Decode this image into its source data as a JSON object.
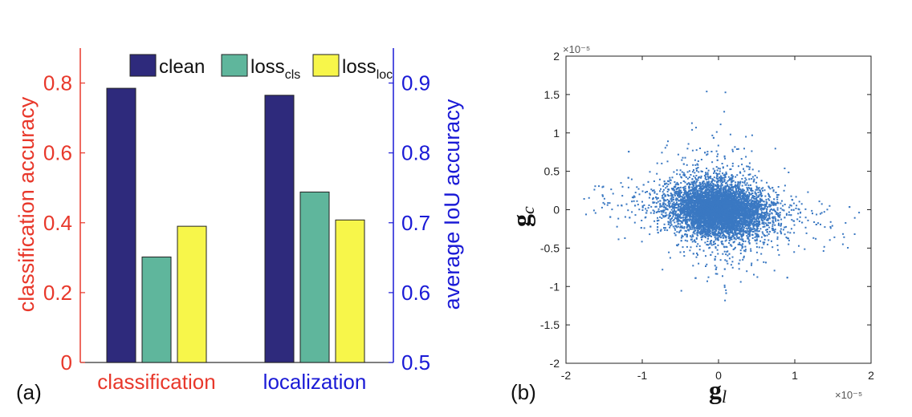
{
  "panel_labels": {
    "a": "(a)",
    "b": "(b)"
  },
  "chart_data": [
    {
      "type": "bar",
      "categories": [
        "classification",
        "localization"
      ],
      "series": [
        {
          "name": "clean",
          "values": [
            0.785,
            0.765
          ],
          "color": "#2e2a7c",
          "right_axis_values": [
            0.8925,
            0.88125
          ]
        },
        {
          "name": "loss_cls",
          "label_main": "loss",
          "label_sub": "cls",
          "values": [
            0.302,
            0.488
          ],
          "color": "#5fb69c",
          "right_axis_values": [
            0.65125,
            0.745
          ]
        },
        {
          "name": "loss_loc",
          "label_main": "loss",
          "label_sub": "loc",
          "values": [
            0.39,
            0.408
          ],
          "color": "#f7f64a",
          "right_axis_values": [
            0.6975,
            0.705
          ]
        }
      ],
      "ylabel": "classification accuracy",
      "ylim": [
        0,
        0.9
      ],
      "yticks": [
        "0",
        "0.2",
        "0.4",
        "0.6",
        "0.8"
      ],
      "ylabel_right": "average IoU accuracy",
      "ylim_right": [
        0.5,
        0.95
      ],
      "yticks_right": [
        "0.5",
        "0.6",
        "0.7",
        "0.8",
        "0.9"
      ],
      "category_colors": [
        "#e8382b",
        "#1a1ad6"
      ],
      "left_axis_color": "#e8382b",
      "right_axis_color": "#1a1ad6",
      "legend_position": "top",
      "grid": false
    },
    {
      "type": "scatter",
      "xlabel_main": "g",
      "xlabel_sub": "l",
      "ylabel_main": "g",
      "ylabel_sub": "c",
      "xlim": [
        -2,
        2
      ],
      "ylim": [
        -2,
        2
      ],
      "xticks": [
        "-2",
        "-1",
        "0",
        "1",
        "2"
      ],
      "yticks": [
        "-2",
        "-1.5",
        "-1",
        "-0.5",
        "0",
        "0.5",
        "1",
        "1.5",
        "2"
      ],
      "x_scale_label": "×10⁻⁵",
      "y_scale_label": "×10⁻⁵",
      "point_color": "#3a78c2",
      "distribution": {
        "center": [
          0,
          0
        ],
        "std_x": 0.3,
        "std_y": 0.17,
        "count": 7000,
        "correlation": -0.15
      },
      "grid": false
    }
  ]
}
